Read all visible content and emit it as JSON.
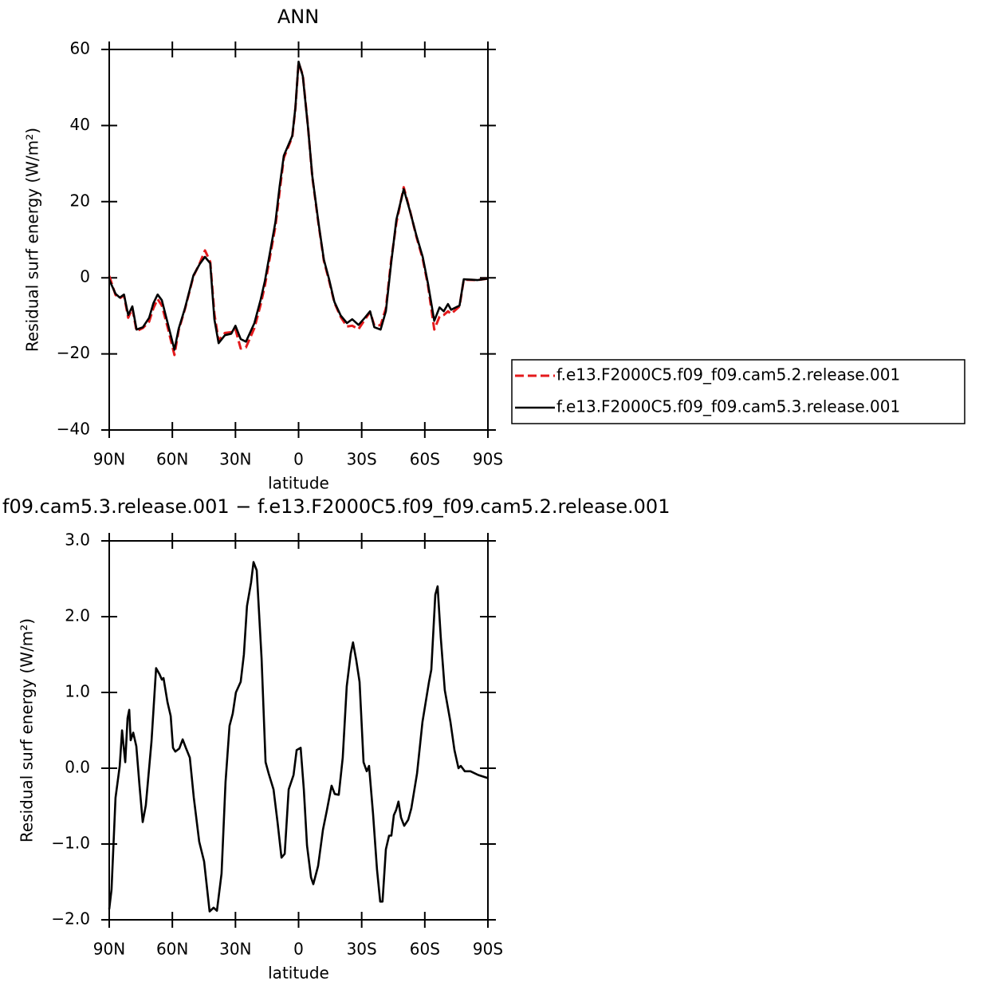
{
  "chart_data": [
    {
      "type": "line",
      "title": "ANN",
      "xlabel": "latitude",
      "ylabel": "Residual surf energy (W/m²)",
      "xlim": [
        90,
        -90
      ],
      "xticks": [
        {
          "value": 90,
          "label": "90N"
        },
        {
          "value": 60,
          "label": "60N"
        },
        {
          "value": 30,
          "label": "30N"
        },
        0,
        {
          "value": -30,
          "label": "30S"
        },
        {
          "value": -60,
          "label": "60S"
        },
        {
          "value": -90,
          "label": "90S"
        }
      ],
      "ylim": [
        -40,
        60
      ],
      "yticks": [
        {
          "value": -40,
          "label": "−40"
        },
        {
          "value": -20,
          "label": "−20"
        },
        0,
        20,
        40,
        60
      ],
      "legend": "right",
      "x": [
        90,
        87,
        85,
        83,
        81,
        79,
        77,
        74,
        71,
        69,
        67,
        65,
        62,
        59,
        57,
        54,
        50,
        47,
        44.5,
        42,
        40,
        38,
        35,
        32,
        30,
        27.5,
        25,
        21,
        18,
        16,
        11,
        9,
        7,
        3,
        1.5,
        0,
        -2,
        -4.5,
        -6.5,
        -9.5,
        -12,
        -14.5,
        -17,
        -20,
        -23,
        -25.5,
        -28.5,
        -31.5,
        -34,
        -36,
        -39,
        -41.5,
        -44,
        -46.5,
        -50,
        -53,
        -56,
        -59,
        -61.5,
        -64.5,
        -67,
        -69,
        -71,
        -72.5,
        -76.5,
        -78.5,
        -85,
        -90
      ],
      "series": [
        {
          "name": "f.e13.F2000C5.f09_f09.cam5.2.release.001",
          "color": "#e41a1c",
          "dashed": true,
          "values": [
            0.5,
            -4.5,
            -5.4,
            -4.6,
            -10.5,
            -8,
            -14,
            -13.2,
            -11.5,
            -8,
            -5.6,
            -7.3,
            -13.5,
            -20.3,
            -13.8,
            -8.2,
            0.4,
            3.8,
            7.2,
            4.2,
            -9.5,
            -16.5,
            -14.5,
            -14.3,
            -13.5,
            -18.6,
            -18.3,
            -13.2,
            -7,
            -2,
            13.6,
            22.8,
            31.5,
            37,
            44.5,
            56.5,
            53.3,
            39.5,
            26.5,
            14,
            4.5,
            -0.8,
            -6.5,
            -10.3,
            -12.8,
            -12.6,
            -13.5,
            -11,
            -9,
            -12.5,
            -12.5,
            -8,
            4.5,
            14.5,
            23.8,
            17.5,
            10.8,
            5,
            -2,
            -13.6,
            -10.2,
            -9.8,
            -8.8,
            -9.5,
            -7.5,
            -0.5,
            -0.6,
            -0.2
          ]
        },
        {
          "name": "f.e13.F2000C5.f09_f09.cam5.3.release.001",
          "color": "#000000",
          "dashed": false,
          "values": [
            -0.5,
            -4.2,
            -5.2,
            -4.4,
            -9.8,
            -7.5,
            -13.6,
            -13,
            -10.5,
            -6.7,
            -4.4,
            -5.9,
            -12.4,
            -18.9,
            -13.4,
            -8,
            0.6,
            3.6,
            5.5,
            3.8,
            -10.9,
            -17.2,
            -15.1,
            -14.7,
            -12.6,
            -16.1,
            -16.8,
            -11.9,
            -5.7,
            -0.8,
            14.7,
            24.1,
            32.1,
            37.3,
            44.7,
            56.8,
            53,
            39.4,
            26.8,
            14.3,
            4.8,
            -0.4,
            -6.3,
            -9.9,
            -11.9,
            -10.9,
            -12.4,
            -10.5,
            -8.8,
            -13,
            -13.6,
            -8.8,
            3.8,
            15.3,
            23.3,
            17.4,
            11.1,
            5.5,
            -1.5,
            -11.3,
            -7.8,
            -8.8,
            -6.9,
            -8.4,
            -7.3,
            -0.4,
            -0.6,
            -0.2
          ]
        }
      ]
    },
    {
      "type": "line",
      "title": "f09.cam5.3.release.001 − f.e13.F2000C5.f09_f09.cam5.2.release.001",
      "xlabel": "latitude",
      "ylabel": "Residual surf energy (W/m²)",
      "xlim": [
        90,
        -90
      ],
      "xticks": [
        {
          "value": 90,
          "label": "90N"
        },
        {
          "value": 60,
          "label": "60N"
        },
        {
          "value": 30,
          "label": "30N"
        },
        0,
        {
          "value": -30,
          "label": "30S"
        },
        {
          "value": -60,
          "label": "60S"
        },
        {
          "value": -90,
          "label": "90S"
        }
      ],
      "ylim": [
        -2,
        3
      ],
      "yticks": [
        {
          "value": -2,
          "label": "−2.0"
        },
        {
          "value": -1,
          "label": "−1.0"
        },
        {
          "value": 0,
          "label": "0.0"
        },
        {
          "value": 1,
          "label": "1.0"
        },
        {
          "value": 2,
          "label": "2.0"
        },
        {
          "value": 3,
          "label": "3.0"
        }
      ],
      "x": [
        90,
        88.9,
        87,
        85,
        83.9,
        82.4,
        81.3,
        80.5,
        79.8,
        78.6,
        77.1,
        75.6,
        74.1,
        72.6,
        69.9,
        67.7,
        66.1,
        65,
        64.2,
        62.3,
        60.8,
        59.7,
        58.6,
        56.7,
        55.1,
        53.6,
        51.7,
        49.8,
        47.2,
        44.9,
        42.3,
        40.4,
        38.8,
        36.6,
        34.7,
        32.8,
        31.3,
        29.8,
        27.5,
        26,
        24.5,
        22.6,
        21.4,
        19.9,
        17.6,
        15.7,
        14.2,
        11.9,
        10,
        8.1,
        6.6,
        4.7,
        2.4,
        0.9,
        -1,
        -2.5,
        -4,
        -5.9,
        -7,
        -9.3,
        -11.6,
        -13.5,
        -15.7,
        -17.2,
        -19.1,
        -21,
        -22.9,
        -24.8,
        -25.9,
        -27.4,
        -29,
        -30.9,
        -32.4,
        -33.5,
        -35.4,
        -37.3,
        -38.8,
        -39.9,
        -41.5,
        -43,
        -44.1,
        -45.3,
        -46.4,
        -47.5,
        -48.7,
        -50.2,
        -52.1,
        -53.6,
        -56.3,
        -58.9,
        -62,
        -63.1,
        -65,
        -66.1,
        -67.6,
        -69.5,
        -72.2,
        -74.1,
        -76,
        -77.1,
        -79,
        -81.7,
        -85.4,
        -90
      ],
      "series": [
        {
          "color": "#000000",
          "dashed": false,
          "values": [
            -1.86,
            -1.6,
            -0.39,
            0.03,
            0.5,
            0.08,
            0.66,
            0.77,
            0.37,
            0.47,
            0.29,
            -0.23,
            -0.71,
            -0.49,
            0.35,
            1.32,
            1.24,
            1.17,
            1.19,
            0.87,
            0.69,
            0.27,
            0.22,
            0.26,
            0.38,
            0.27,
            0.14,
            -0.39,
            -0.97,
            -1.23,
            -1.89,
            -1.84,
            -1.88,
            -1.39,
            -0.18,
            0.56,
            0.72,
            1.0,
            1.14,
            1.5,
            2.14,
            2.45,
            2.72,
            2.61,
            1.45,
            0.08,
            -0.07,
            -0.28,
            -0.71,
            -1.18,
            -1.13,
            -0.28,
            -0.09,
            0.24,
            0.27,
            -0.28,
            -1.02,
            -1.44,
            -1.53,
            -1.29,
            -0.81,
            -0.55,
            -0.23,
            -0.34,
            -0.35,
            0.14,
            1.08,
            1.51,
            1.66,
            1.43,
            1.14,
            0.08,
            -0.04,
            0.03,
            -0.6,
            -1.34,
            -1.76,
            -1.76,
            -1.07,
            -0.89,
            -0.89,
            -0.62,
            -0.55,
            -0.44,
            -0.65,
            -0.76,
            -0.68,
            -0.53,
            -0.07,
            0.61,
            1.14,
            1.3,
            2.29,
            2.4,
            1.72,
            1.03,
            0.61,
            0.24,
            0,
            0.03,
            -0.04,
            -0.04,
            -0.09,
            -0.13
          ]
        }
      ]
    }
  ]
}
